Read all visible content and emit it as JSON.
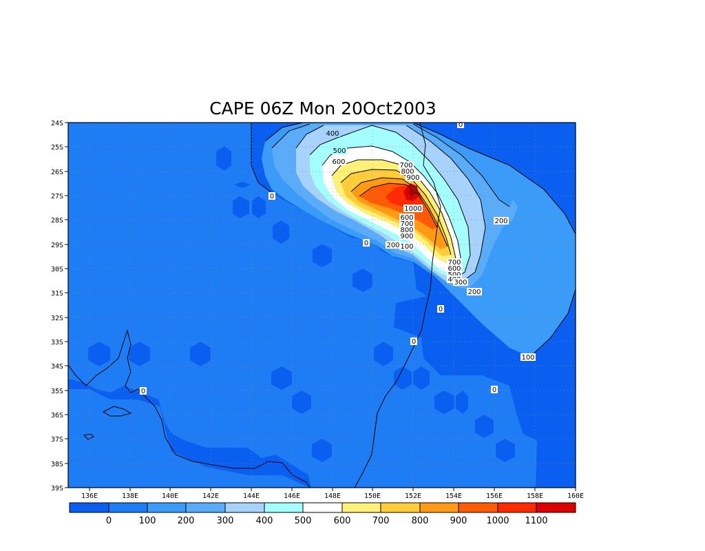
{
  "title": "CAPE 06Z Mon 20Oct2003",
  "map": {
    "lat_labels": [
      "24S",
      "25S",
      "26S",
      "27S",
      "28S",
      "29S",
      "30S",
      "31S",
      "32S",
      "33S",
      "34S",
      "35S",
      "36S",
      "37S",
      "38S",
      "39S"
    ],
    "lon_labels": [
      "136E",
      "138E",
      "140E",
      "142E",
      "144E",
      "146E",
      "148E",
      "150E",
      "152E",
      "154E",
      "156E",
      "158E",
      "160E"
    ],
    "contour_labels": [
      "0",
      "400",
      "500",
      "600",
      "700",
      "800",
      "900",
      "1000",
      "600",
      "700",
      "800",
      "900",
      "0",
      "200",
      "100",
      "200",
      "700",
      "600",
      "500",
      "400",
      "300",
      "200",
      "0",
      "0",
      "100",
      "0",
      "0"
    ]
  },
  "colorbar": {
    "labels": [
      "0",
      "100",
      "200",
      "300",
      "400",
      "500",
      "600",
      "700",
      "800",
      "900",
      "1000",
      "1100"
    ],
    "colors": [
      "#0a5ff0",
      "#1e7cf5",
      "#3a9bf8",
      "#5aacf9",
      "#a6d2fb",
      "#a4fefe",
      "#ffffff",
      "#fff07a",
      "#ffcd3c",
      "#ff9a14",
      "#ff5a05",
      "#ff2a00",
      "#dc0000",
      "#a00000"
    ]
  }
}
